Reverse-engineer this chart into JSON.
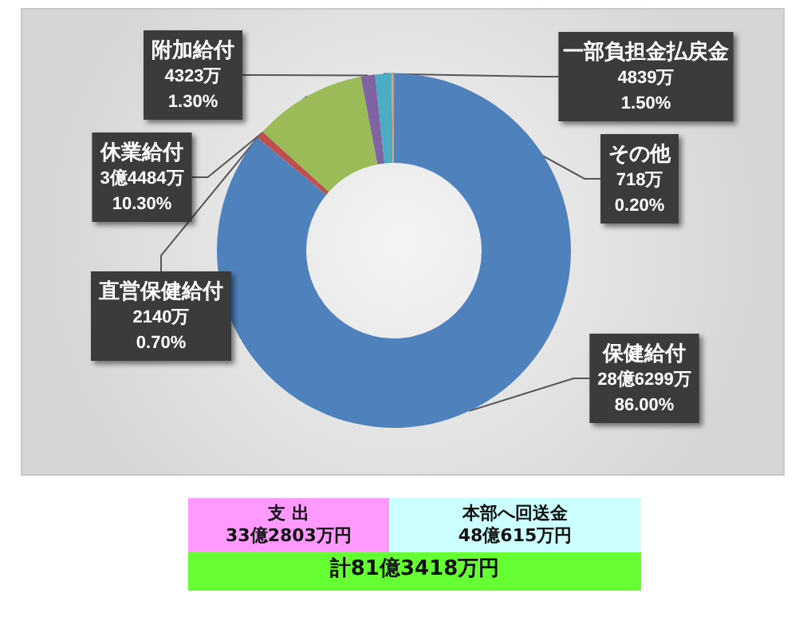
{
  "chart_data": {
    "type": "donut",
    "categories": [
      "保健給付",
      "直営保健給付",
      "休業給付",
      "附加給付",
      "一部負担金払戻金",
      "その他"
    ],
    "values": [
      86.0,
      0.7,
      10.3,
      1.3,
      1.5,
      0.2
    ],
    "value_labels": [
      "28億6299万\n86.00%",
      "2140万\n0.70%",
      "3億4484万\n10.30%",
      "4323万\n1.30%",
      "4839万\n1.50%",
      "718万\n0.20%"
    ],
    "colors": [
      "#4f81bd",
      "#c0504d",
      "#9bbb59",
      "#8064a2",
      "#4bacc6",
      "#f79646"
    ],
    "legend": false,
    "annotations": [
      "支 出",
      "33億2803万円",
      "本部へ回送金",
      "48億615万円",
      "計81億3418万円"
    ]
  }
}
